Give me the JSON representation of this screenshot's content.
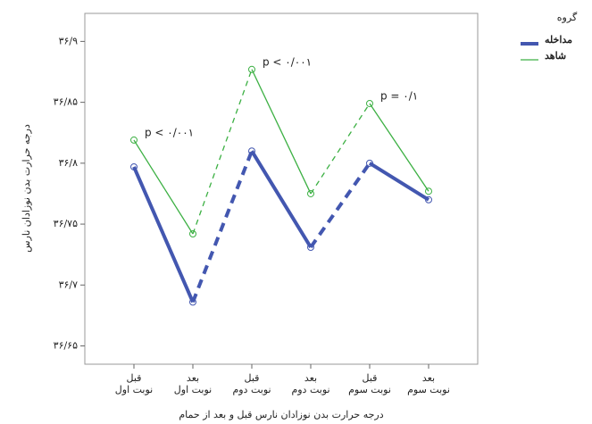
{
  "chart_data": {
    "type": "line",
    "categories": [
      [
        "قبل",
        "نوبت اول"
      ],
      [
        "بعد",
        "نوبت اول"
      ],
      [
        "قبل",
        "نوبت دوم"
      ],
      [
        "بعد",
        "نوبت دوم"
      ],
      [
        "قبل",
        "نوبت سوم"
      ],
      [
        "بعد",
        "نوبت سوم"
      ]
    ],
    "series": [
      {
        "name": "مداخله",
        "color": "#4357b0",
        "values": [
          36.797,
          36.686,
          36.81,
          36.731,
          36.8,
          36.77
        ]
      },
      {
        "name": "شاهد",
        "color": "#3cb043",
        "values": [
          36.819,
          36.742,
          36.877,
          36.775,
          36.849,
          36.777
        ]
      }
    ],
    "ylim": [
      36.635,
      36.923
    ],
    "yticks": [
      {
        "value": 36.65,
        "label": "۳۶/۶۵"
      },
      {
        "value": 36.7,
        "label": "۳۶/۷"
      },
      {
        "value": 36.75,
        "label": "۳۶/۷۵"
      },
      {
        "value": 36.8,
        "label": "۳۶/۸"
      },
      {
        "value": 36.85,
        "label": "۳۶/۸۵"
      },
      {
        "value": 36.9,
        "label": "۳۶/۹"
      }
    ],
    "y_label": "درجه حرارت بدن نوزادان نارس",
    "x_label": "درجه حرارت بدن نوزادان نارس قبل و بعد از حمام",
    "legend_title": "گروه",
    "annotations": [
      "p < ۰/۰۰۱",
      "p < ۰/۰۰۱",
      "p = ۰/۱"
    ]
  }
}
